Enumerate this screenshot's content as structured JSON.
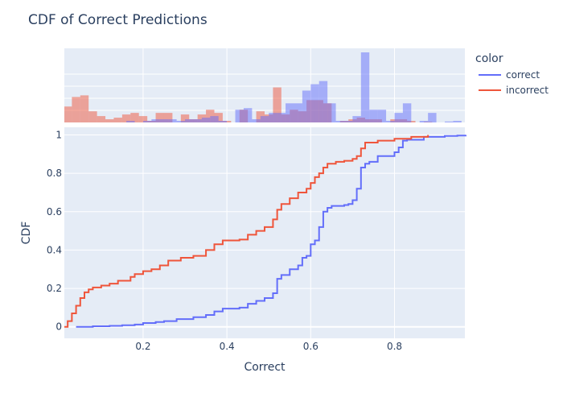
{
  "chart_data": {
    "type": "line",
    "title": "CDF of Correct Predictions",
    "xlabel": "Correct",
    "ylabel": "CDF",
    "xlim": [
      0.012,
      0.968
    ],
    "ylim": [
      -0.06,
      1.04
    ],
    "x_ticks": [
      0.2,
      0.4,
      0.6,
      0.8
    ],
    "x_tick_labels": [
      "0.2",
      "0.4",
      "0.6",
      "0.8"
    ],
    "y_ticks": [
      0,
      0.2,
      0.4,
      0.6,
      0.8,
      1
    ],
    "y_tick_labels": [
      "0",
      "0.2",
      "0.4",
      "0.6",
      "0.8",
      "1"
    ],
    "grid": true,
    "legend": {
      "title": "color",
      "placement": "top-right",
      "entries": [
        {
          "name": "correct",
          "color": "#636efa"
        },
        {
          "name": "incorrect",
          "color": "#ef553b"
        }
      ]
    },
    "series": [
      {
        "name": "correct",
        "color": "#636efa",
        "x": [
          0.04,
          0.08,
          0.12,
          0.15,
          0.18,
          0.2,
          0.23,
          0.25,
          0.28,
          0.32,
          0.35,
          0.37,
          0.39,
          0.43,
          0.45,
          0.47,
          0.49,
          0.51,
          0.52,
          0.53,
          0.55,
          0.57,
          0.58,
          0.59,
          0.6,
          0.61,
          0.62,
          0.63,
          0.64,
          0.65,
          0.68,
          0.69,
          0.7,
          0.71,
          0.72,
          0.73,
          0.74,
          0.76,
          0.8,
          0.81,
          0.82,
          0.83,
          0.87,
          0.92,
          0.95,
          0.97
        ],
        "y": [
          0.0,
          0.003,
          0.005,
          0.008,
          0.012,
          0.02,
          0.025,
          0.03,
          0.04,
          0.05,
          0.062,
          0.08,
          0.095,
          0.1,
          0.12,
          0.135,
          0.15,
          0.175,
          0.25,
          0.27,
          0.3,
          0.32,
          0.36,
          0.37,
          0.43,
          0.45,
          0.52,
          0.6,
          0.62,
          0.63,
          0.635,
          0.64,
          0.66,
          0.72,
          0.83,
          0.85,
          0.86,
          0.89,
          0.91,
          0.935,
          0.97,
          0.975,
          0.99,
          0.995,
          0.997,
          1.0
        ]
      },
      {
        "name": "incorrect",
        "color": "#ef553b",
        "x": [
          0.012,
          0.02,
          0.03,
          0.04,
          0.05,
          0.06,
          0.07,
          0.08,
          0.1,
          0.12,
          0.14,
          0.17,
          0.18,
          0.2,
          0.22,
          0.24,
          0.26,
          0.29,
          0.32,
          0.35,
          0.37,
          0.39,
          0.43,
          0.45,
          0.47,
          0.49,
          0.51,
          0.52,
          0.53,
          0.55,
          0.57,
          0.59,
          0.6,
          0.61,
          0.62,
          0.63,
          0.64,
          0.66,
          0.68,
          0.7,
          0.71,
          0.72,
          0.73,
          0.76,
          0.8,
          0.84,
          0.88
        ],
        "y": [
          0.0,
          0.03,
          0.07,
          0.11,
          0.15,
          0.18,
          0.195,
          0.205,
          0.215,
          0.225,
          0.24,
          0.26,
          0.275,
          0.29,
          0.3,
          0.32,
          0.345,
          0.36,
          0.37,
          0.4,
          0.43,
          0.45,
          0.455,
          0.48,
          0.5,
          0.52,
          0.56,
          0.61,
          0.64,
          0.67,
          0.7,
          0.72,
          0.75,
          0.78,
          0.8,
          0.83,
          0.85,
          0.86,
          0.865,
          0.875,
          0.89,
          0.93,
          0.96,
          0.97,
          0.98,
          0.99,
          1.0
        ]
      }
    ],
    "histograms": {
      "bin_width": 0.02,
      "series": [
        {
          "name": "correct",
          "color": "#636efa",
          "x": [
            0.17,
            0.21,
            0.23,
            0.25,
            0.27,
            0.29,
            0.31,
            0.33,
            0.35,
            0.37,
            0.39,
            0.43,
            0.45,
            0.47,
            0.49,
            0.51,
            0.53,
            0.55,
            0.57,
            0.59,
            0.61,
            0.63,
            0.65,
            0.67,
            0.69,
            0.71,
            0.73,
            0.75,
            0.77,
            0.79,
            0.81,
            0.83,
            0.85,
            0.87,
            0.89,
            0.91,
            0.93,
            0.95
          ],
          "values": [
            0.5,
            0.5,
            1,
            1,
            1,
            0.5,
            1,
            1,
            1.5,
            2,
            0.5,
            4,
            4.5,
            1,
            2,
            3,
            3,
            6,
            6,
            10,
            12,
            13,
            6,
            0.5,
            0.5,
            2,
            22,
            4,
            4,
            0.5,
            3,
            6,
            0,
            0.5,
            3,
            0,
            0.3,
            0.5
          ]
        },
        {
          "name": "incorrect",
          "color": "#ef553b",
          "x": [
            0.02,
            0.04,
            0.06,
            0.08,
            0.1,
            0.12,
            0.14,
            0.16,
            0.18,
            0.2,
            0.22,
            0.24,
            0.26,
            0.28,
            0.3,
            0.32,
            0.34,
            0.36,
            0.38,
            0.4,
            0.42,
            0.44,
            0.46,
            0.48,
            0.5,
            0.52,
            0.54,
            0.56,
            0.58,
            0.6,
            0.62,
            0.64,
            0.66,
            0.68,
            0.7,
            0.72,
            0.74,
            0.76,
            0.78,
            0.8,
            0.82,
            0.84,
            0.86,
            0.88
          ],
          "values": [
            5,
            8,
            8.5,
            3.5,
            2,
            1,
            1.5,
            2.5,
            3,
            2,
            0.5,
            3,
            3,
            0,
            2.5,
            1,
            2.5,
            4,
            3,
            0.5,
            0,
            4,
            0,
            3.5,
            2.5,
            11,
            2.5,
            4,
            3.5,
            7,
            7,
            6,
            0,
            0.5,
            1,
            1.5,
            1,
            1,
            0,
            1,
            1,
            0.5,
            0,
            0.2
          ]
        }
      ]
    }
  }
}
